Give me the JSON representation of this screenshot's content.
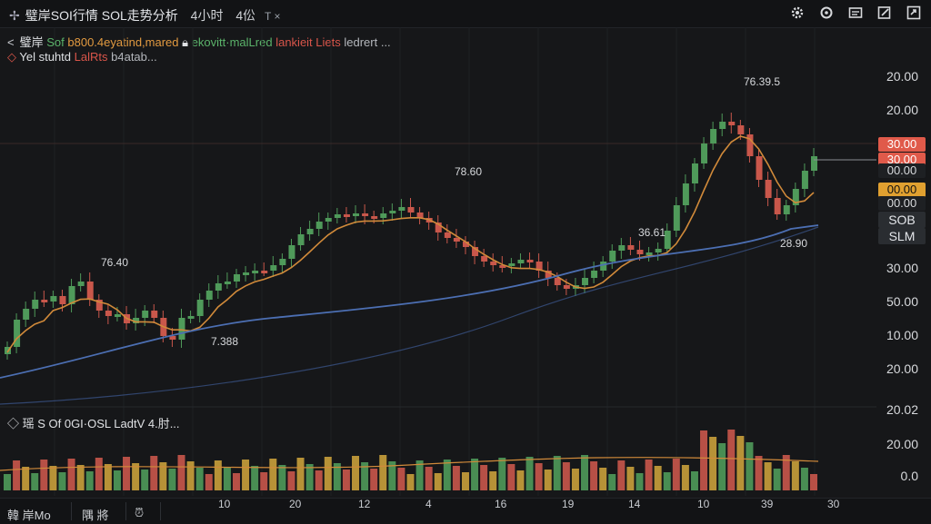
{
  "header": {
    "title": "璧岸SOI行情 SOL走势分析",
    "timeframe": "4小时",
    "timeframe2": "4伀",
    "close_glyph": "T ×"
  },
  "toolbar_icons": [
    "gear-icon",
    "settings-icon",
    "layout-icon",
    "edit-icon",
    "fullscreen-icon"
  ],
  "legend": {
    "line1": {
      "prefix": "璧岸",
      "sym": "Sof",
      "val": "b800.4eyatind,mared",
      "mid": "ekovitt·malLred",
      "red": "lankieit Liets",
      "tail": "ledrert ..."
    },
    "line2": {
      "a": "Yel stuhtd",
      "b": "LalRts",
      "c": "b4atab..."
    }
  },
  "volume_legend": "◇ 瑶 S Of 0GI·OSL LadtV 4.肘...",
  "annotations": {
    "peak": "76.39.5",
    "mid_high": "78.60",
    "left_high": "76.40",
    "left_low": "7.388",
    "right_mid": "36.61",
    "right_low": "28.90"
  },
  "price_axis": [
    "20.00",
    "20.00",
    "30.00",
    "30.00",
    "30.00",
    "50.00",
    "10.00",
    "20.00",
    "20.02",
    "20.00",
    "0.0"
  ],
  "price_tags": [
    {
      "text": "30.00",
      "bg": "#e05a4a",
      "fg": "#ffffff"
    },
    {
      "text": "30.00",
      "bg": "#e05a4a",
      "fg": "#ffffff"
    },
    {
      "text": "00.00",
      "bg": "#1e2023",
      "fg": "#d7d9dc"
    },
    {
      "text": "00.00",
      "bg": "#e0a030",
      "fg": "#111111"
    },
    {
      "text": "00.00",
      "bg": "#1e2023",
      "fg": "#d7d9dc"
    },
    {
      "text": "SOB",
      "bg": "#2a2d31",
      "fg": "#e4e6ea"
    },
    {
      "text": "SLM",
      "bg": "#2a2d31",
      "fg": "#e4e6ea"
    }
  ],
  "time_axis": [
    "10",
    "20",
    "12",
    "4",
    "16",
    "19",
    "14",
    "10",
    "39",
    "30"
  ],
  "bottom_bar": {
    "left": "韓 岸Mo",
    "mid": "隅 將",
    "icon": "alarm-icon"
  },
  "colors": {
    "up": "#4f9a5a",
    "down": "#c9574b",
    "ma_fast": "#d18a3a",
    "ma_slow": "#4c6fb3",
    "bg": "#161719"
  }
}
